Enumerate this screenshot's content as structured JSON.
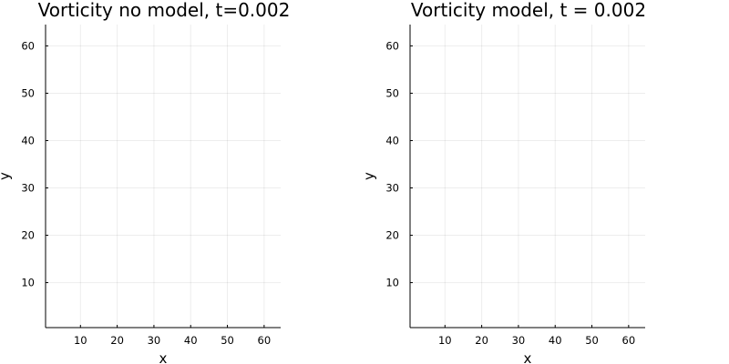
{
  "chart_data": [
    {
      "type": "heatmap",
      "title": "Vorticity no model, t=0.002",
      "xlabel": "x",
      "ylabel": "y",
      "xlim": [
        0.5,
        64.5
      ],
      "ylim": [
        0.5,
        64.5
      ],
      "xticks": [
        10,
        20,
        30,
        40,
        50,
        60
      ],
      "yticks": [
        10,
        20,
        30,
        40,
        50,
        60
      ],
      "grid": true,
      "values": []
    },
    {
      "type": "heatmap",
      "title": "Vorticity model, t = 0.002",
      "xlabel": "x",
      "ylabel": "y",
      "xlim": [
        0.5,
        64.5
      ],
      "ylim": [
        0.5,
        64.5
      ],
      "xticks": [
        10,
        20,
        30,
        40,
        50,
        60
      ],
      "yticks": [
        10,
        20,
        30,
        40,
        50,
        60
      ],
      "grid": true,
      "values": []
    }
  ]
}
